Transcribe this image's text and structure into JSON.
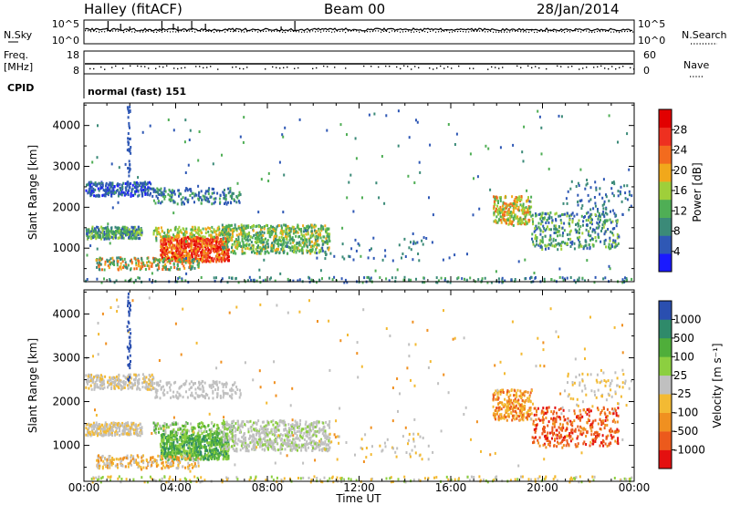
{
  "header": {
    "station": "Halley (fitACF)",
    "beam": "Beam 00",
    "date": "28/Jan/2014"
  },
  "strips": {
    "nsky_label": "N.Sky",
    "nsearch_label": "N.Search",
    "counts_ticks": [
      "10^5",
      "10^0"
    ],
    "freq_label_top": "Freq.",
    "freq_label_unit": "[MHz]",
    "freq_ticks": [
      "18",
      "8"
    ],
    "nave_label": "Nave",
    "nave_ticks": [
      "60",
      "0"
    ],
    "cpid_label": "CPID",
    "cpid_value": "normal (fast) 151"
  },
  "colors": {
    "power_scale": [
      "#1a1aff",
      "#2f58b5",
      "#3b8a78",
      "#4fae55",
      "#9fcf3a",
      "#f1a81b",
      "#f36b1e",
      "#ee3020",
      "#e20000"
    ],
    "velocity_scale": [
      "#e41010",
      "#ec5a1c",
      "#f09020",
      "#f3ba33",
      "#c0c0c0",
      "#8ccf40",
      "#4fae3a",
      "#2f8a6a",
      "#2a4fb0"
    ]
  },
  "chart_data": [
    {
      "type": "heatmap",
      "panel": "power",
      "ylabel": "Slant Range [km]",
      "x_ticks": [
        "00:00",
        "04:00",
        "08:00",
        "12:00",
        "16:00",
        "20:00",
        "00:00"
      ],
      "y_ticks": [
        "1000",
        "2000",
        "3000",
        "4000"
      ],
      "ylim": [
        180,
        4550
      ],
      "colorbar": {
        "label": "Power [dB]",
        "ticks": [
          "4",
          "8",
          "12",
          "16",
          "20",
          "24",
          "28"
        ]
      }
    },
    {
      "type": "heatmap",
      "panel": "velocity",
      "ylabel": "Slant Range [km]",
      "xlabel": "Time UT",
      "x_ticks": [
        "00:00",
        "04:00",
        "08:00",
        "12:00",
        "16:00",
        "20:00",
        "00:00"
      ],
      "y_ticks": [
        "1000",
        "2000",
        "3000",
        "4000"
      ],
      "ylim": [
        180,
        4550
      ],
      "colorbar": {
        "label": "Velocity [m s⁻¹]",
        "ticks": [
          "1000",
          "500",
          "100",
          "25",
          "-25",
          "-100",
          "-500",
          "-1000"
        ]
      }
    }
  ]
}
